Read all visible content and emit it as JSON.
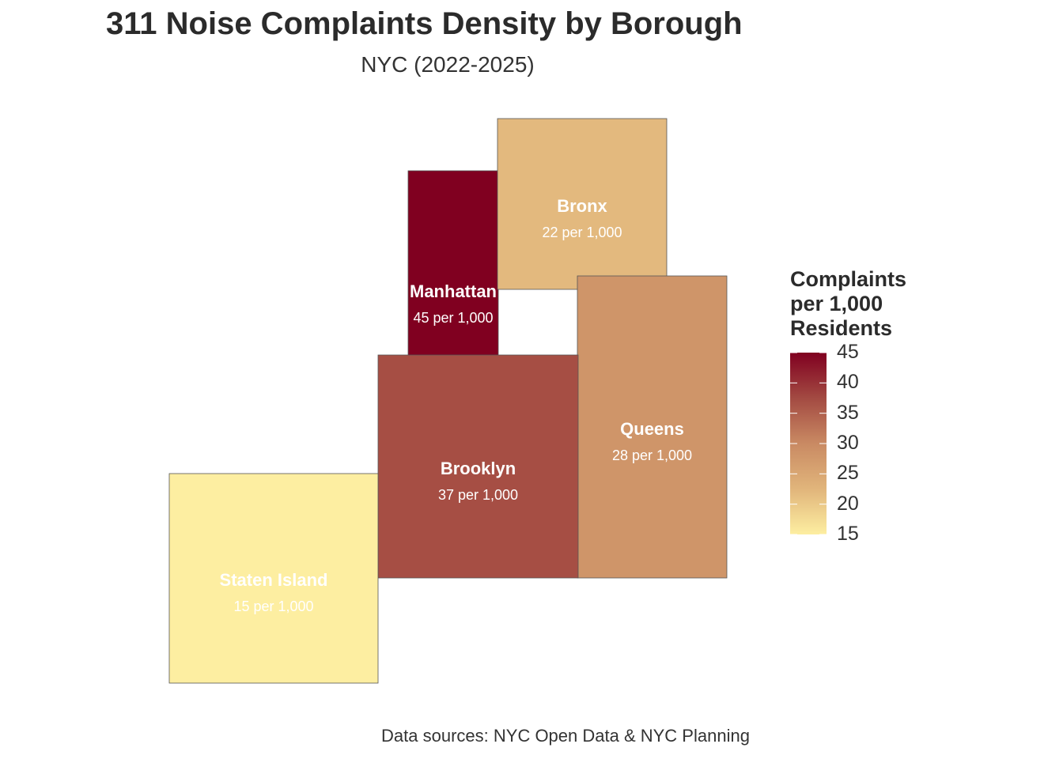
{
  "title": "311 Noise Complaints Density by Borough",
  "subtitle": "NYC (2022-2025)",
  "caption": "Data sources: NYC Open Data & NYC Planning",
  "legend": {
    "title_lines": [
      "Complaints",
      "per 1,000",
      "Residents"
    ],
    "ticks": [
      "45",
      "40",
      "35",
      "30",
      "25",
      "20",
      "15"
    ],
    "range": [
      15,
      45
    ],
    "colors": {
      "low": "#fdeea1",
      "mid_low": "#e1b57b",
      "mid": "#c98a63",
      "mid_high": "#a34a42",
      "high": "#800020"
    }
  },
  "chart_data": {
    "type": "heatmap",
    "title": "311 Noise Complaints Density by Borough",
    "subtitle": "NYC (2022-2025)",
    "value_label": "Complaints per 1,000 Residents",
    "scale_range": [
      15,
      45
    ],
    "boroughs": [
      {
        "name": "Manhattan",
        "value": 45,
        "label": "45 per 1,000"
      },
      {
        "name": "Bronx",
        "value": 22,
        "label": "22 per 1,000"
      },
      {
        "name": "Queens",
        "value": 28,
        "label": "28 per 1,000"
      },
      {
        "name": "Brooklyn",
        "value": 37,
        "label": "37 per 1,000"
      },
      {
        "name": "Staten Island",
        "value": 15,
        "label": "15 per 1,000"
      }
    ]
  }
}
